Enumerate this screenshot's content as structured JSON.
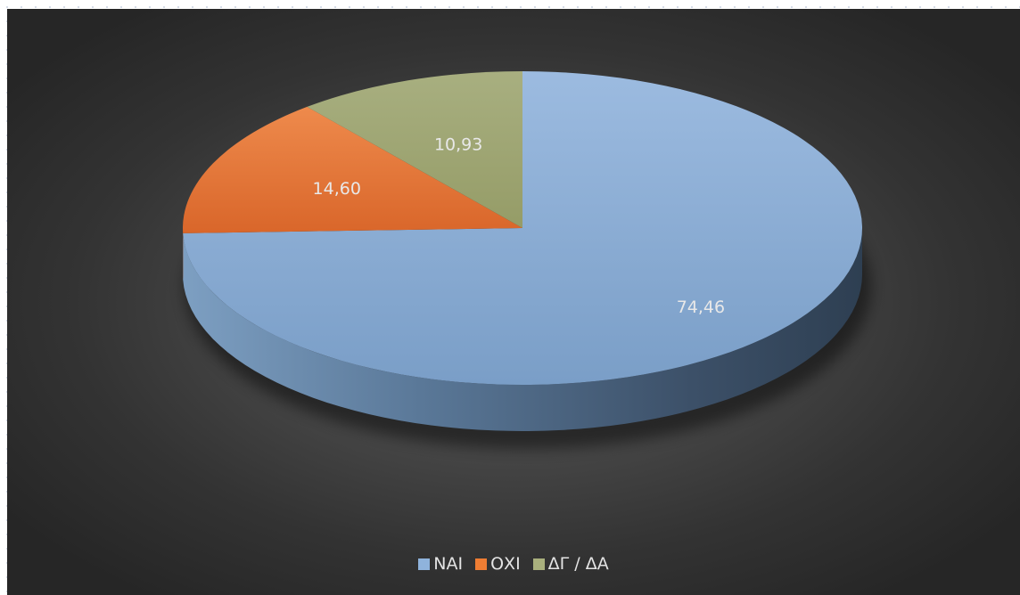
{
  "chart_data": {
    "type": "pie",
    "style": "3d",
    "title": "",
    "series": [
      {
        "values": [
          74.46,
          14.6,
          10.93
        ]
      }
    ],
    "categories": [
      "ΝΑΙ",
      "ΟΧΙ",
      "ΔΓ / ΔΑ"
    ],
    "values": [
      74.46,
      14.6,
      10.93
    ],
    "data_labels": [
      "74,46",
      "14,60",
      "10,93"
    ],
    "colors": [
      "#7fa6d2",
      "#e06f2d",
      "#9fa772"
    ],
    "side_colors": [
      "#4d6a8a",
      "#9a4a1c",
      "#6b7148"
    ],
    "start_angle": "12 o'clock, clockwise",
    "legend_position": "bottom"
  },
  "legend": {
    "items": [
      {
        "label": "ΝΑΙ",
        "color": "#8fb3dc"
      },
      {
        "label": "ΟΧΙ",
        "color": "#ef7d33"
      },
      {
        "label": "ΔΓ / ΔΑ",
        "color": "#a9b07d"
      }
    ]
  }
}
